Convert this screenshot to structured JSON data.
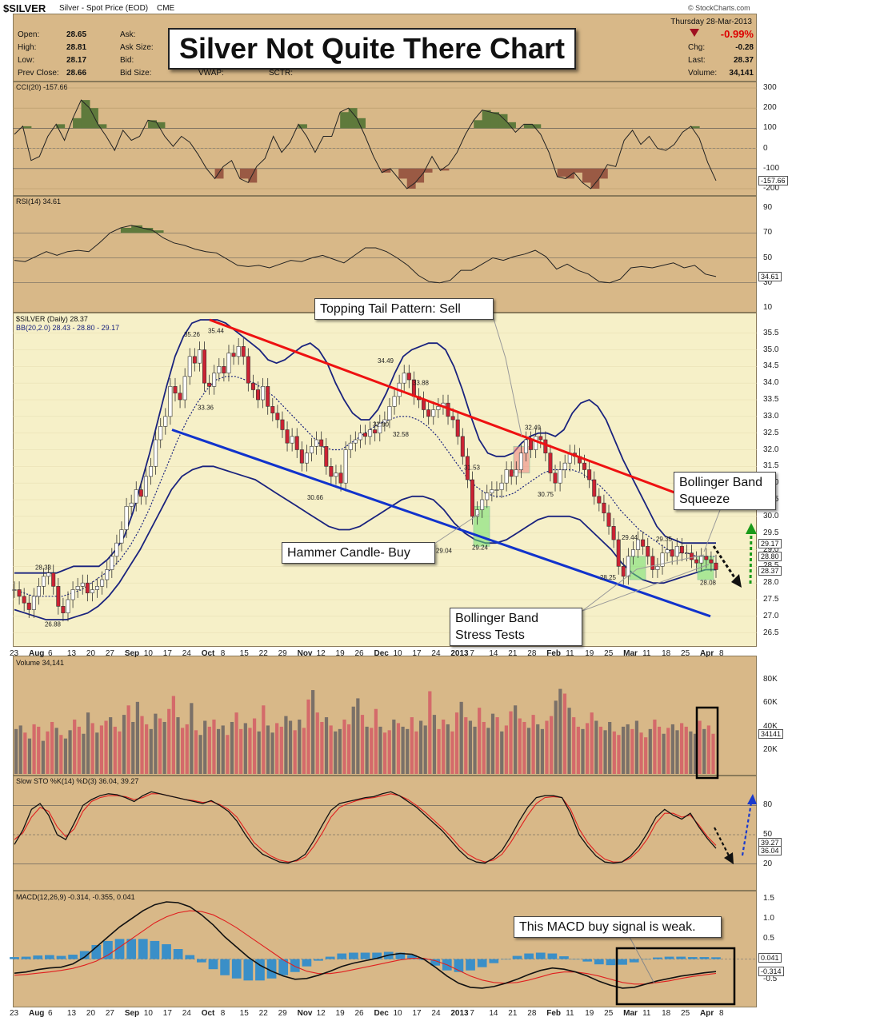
{
  "header": {
    "symbol": "$SILVER",
    "name": "Silver - Spot Price (EOD)",
    "exchange": "CME",
    "source": "© StockCharts.com",
    "date": "Thursday  28-Mar-2013",
    "change_pct": "-0.99%",
    "chart_title": "Silver Not Quite There Chart",
    "quotes_left": [
      {
        "label": "Open:",
        "value": "28.65"
      },
      {
        "label": "High:",
        "value": "28.81"
      },
      {
        "label": "Low:",
        "value": "28.17"
      },
      {
        "label": "Prev Close:",
        "value": "28.66"
      }
    ],
    "quotes_mid": [
      "Ask:",
      "Ask Size:",
      "Bid:",
      "Bid Size:"
    ],
    "quotes_extra": [
      "VWAP:",
      "SCTR:"
    ],
    "quotes_right": [
      {
        "label": "Chg:",
        "value": "-0.28"
      },
      {
        "label": "Last:",
        "value": "28.37"
      },
      {
        "label": "Volume:",
        "value": "34,141"
      }
    ]
  },
  "colors": {
    "panel": "#d8b888",
    "up": "#2e8b2e",
    "down": "#cc2233",
    "red_line": "#ee1111",
    "blue_line": "#1133cc",
    "band": "#1a237e",
    "cci_pos": "#5f7a3c",
    "cci_neg": "#9a5a44"
  },
  "x_axis": [
    "23",
    "Aug",
    "6",
    "13",
    "20",
    "27",
    "Sep",
    "10",
    "17",
    "24",
    "Oct",
    "8",
    "15",
    "22",
    "29",
    "Nov",
    "12",
    "19",
    "26",
    "Dec",
    "10",
    "17",
    "24",
    "2013",
    "7",
    "14",
    "21",
    "28",
    "Feb",
    "11",
    "19",
    "25",
    "Mar",
    "11",
    "18",
    "25",
    "Apr",
    "8"
  ],
  "annotations": {
    "topping": "Topping Tail Pattern: Sell",
    "hammer": "Hammer Candle- Buy",
    "squeeze": [
      "Bollinger Band",
      "Squeeze"
    ],
    "stress": [
      "Bollinger Band",
      "Stress Tests"
    ],
    "macd": "This MACD buy signal is weak."
  },
  "chart_data": [
    {
      "type": "line",
      "title": "CCI(20) -157.66",
      "ylim": [
        -200,
        300
      ],
      "ticks": [
        "300",
        "200",
        "100",
        "0",
        "-100",
        "-200"
      ],
      "last_tag": "-157.66",
      "levels": [
        100,
        -100
      ],
      "values": [
        70,
        110,
        -60,
        -40,
        60,
        120,
        40,
        150,
        240,
        200,
        120,
        60,
        -10,
        90,
        40,
        60,
        140,
        130,
        60,
        10,
        60,
        30,
        -30,
        -100,
        -150,
        -90,
        -60,
        -150,
        -170,
        -90,
        -50,
        60,
        -20,
        30,
        120,
        60,
        -20,
        60,
        60,
        180,
        200,
        150,
        60,
        -40,
        -120,
        -100,
        -150,
        -200,
        -170,
        -120,
        -40,
        -110,
        -80,
        -20,
        70,
        140,
        190,
        180,
        170,
        130,
        80,
        120,
        120,
        70,
        -20,
        -140,
        -150,
        -120,
        -170,
        -200,
        -150,
        -80,
        -90,
        40,
        90,
        20,
        60,
        0,
        -10,
        20,
        80,
        110,
        50,
        -70,
        -160
      ]
    },
    {
      "type": "line",
      "title": "RSI(14) 34.61",
      "ylim": [
        10,
        90
      ],
      "ticks": [
        "90",
        "70",
        "50",
        "30",
        "10"
      ],
      "last_tag": "34.61",
      "levels": [
        70,
        50,
        30
      ],
      "values": [
        48,
        47,
        51,
        55,
        52,
        55,
        56,
        55,
        62,
        70,
        74,
        76,
        74,
        72,
        66,
        62,
        60,
        57,
        55,
        54,
        49,
        44,
        43,
        44,
        42,
        45,
        48,
        47,
        50,
        52,
        49,
        46,
        52,
        58,
        58,
        55,
        50,
        44,
        36,
        31,
        30,
        32,
        40,
        40,
        45,
        50,
        48,
        51,
        53,
        56,
        51,
        41,
        45,
        40,
        37,
        31,
        30,
        33,
        42,
        43,
        42,
        44,
        46,
        42,
        44,
        37,
        35
      ]
    },
    {
      "type": "candlestick",
      "title": "$SILVER (Daily) 28.37",
      "subtitle": "BB(20,2.0) 28.43 - 28.80 - 29.17",
      "ylim": [
        26.3,
        35.9
      ],
      "ticks": [
        "35.5",
        "35.0",
        "34.5",
        "34.0",
        "33.5",
        "33.0",
        "32.5",
        "32.0",
        "31.5",
        "31.0",
        "30.5",
        "30.0",
        "29.5",
        "29.0",
        "28.5",
        "28.0",
        "27.5",
        "27.0",
        "26.5"
      ],
      "tags": [
        "29.17",
        "28.80",
        "28.37"
      ],
      "close": [
        27.8,
        27.6,
        27.4,
        27.2,
        27.6,
        27.9,
        28.2,
        28.3,
        27.9,
        27.3,
        27.1,
        27.5,
        27.8,
        27.9,
        28.0,
        27.7,
        27.8,
        27.9,
        28.1,
        28.4,
        28.8,
        29.2,
        29.6,
        30.3,
        30.4,
        30.8,
        30.6,
        31.2,
        31.5,
        32.3,
        32.7,
        33.0,
        33.9,
        33.7,
        33.5,
        34.2,
        34.8,
        34.6,
        35.0,
        34.0,
        33.9,
        34.3,
        34.5,
        34.3,
        34.9,
        34.8,
        35.1,
        34.8,
        34.0,
        33.8,
        33.5,
        33.9,
        33.3,
        33.1,
        32.9,
        32.6,
        32.2,
        32.4,
        32.0,
        31.6,
        31.9,
        32.1,
        32.3,
        32.1,
        31.5,
        31.2,
        31.3,
        31.0,
        32.0,
        32.2,
        32.3,
        32.5,
        32.4,
        32.6,
        32.5,
        32.8,
        32.9,
        33.3,
        33.6,
        34.0,
        34.3,
        34.1,
        33.6,
        33.5,
        33.2,
        33.0,
        33.2,
        33.3,
        33.4,
        33.0,
        32.9,
        32.4,
        31.8,
        31.1,
        30.0,
        30.2,
        30.5,
        30.7,
        30.8,
        30.8,
        31.0,
        31.4,
        31.2,
        31.4,
        31.9,
        32.3,
        32.0,
        32.4,
        32.3,
        31.9,
        31.3,
        31.0,
        31.4,
        31.6,
        31.9,
        31.8,
        31.6,
        31.4,
        31.1,
        30.6,
        30.4,
        30.1,
        29.7,
        29.3,
        28.5,
        28.2,
        28.8,
        29.0,
        29.3,
        29.1,
        28.8,
        28.4,
        28.5,
        28.9,
        29.0,
        28.8,
        29.1,
        28.9,
        28.9,
        28.7,
        28.6,
        28.8,
        28.7,
        28.6,
        28.4
      ],
      "bb_upper": [
        28.3,
        28.3,
        28.3,
        28.3,
        28.3,
        28.3,
        28.4,
        28.5,
        28.5,
        28.5,
        28.5,
        28.7,
        29.0,
        29.4,
        30.1,
        31.0,
        31.9,
        32.9,
        33.9,
        34.8,
        35.4,
        35.8,
        35.9,
        35.9,
        35.9,
        35.8,
        35.6,
        35.4,
        35.2,
        35.0,
        34.7,
        34.6,
        34.7,
        34.9,
        35.1,
        35.2,
        35.0,
        34.6,
        34.0,
        33.5,
        33.1,
        32.9,
        32.9,
        33.2,
        33.7,
        34.3,
        34.8,
        35.0,
        35.1,
        35.2,
        35.2,
        35.0,
        34.5,
        33.8,
        33.0,
        32.3,
        31.9,
        31.8,
        31.8,
        31.9,
        32.2,
        32.4,
        32.5,
        32.5,
        32.4,
        32.6,
        33.1,
        33.4,
        33.5,
        33.3,
        32.9,
        32.3,
        31.7,
        31.2,
        30.7,
        30.2,
        29.7,
        29.4,
        29.3,
        29.2,
        29.2,
        29.2,
        29.2,
        29.2
      ],
      "bb_mid": [
        27.8,
        27.7,
        27.6,
        27.6,
        27.6,
        27.6,
        27.7,
        27.8,
        28.0,
        28.2,
        28.4,
        28.7,
        29.1,
        29.6,
        30.2,
        30.9,
        31.6,
        32.3,
        32.9,
        33.4,
        33.8,
        34.1,
        34.2,
        34.2,
        34.1,
        34.0,
        33.8,
        33.6,
        33.3,
        33.0,
        32.7,
        32.4,
        32.1,
        32.0,
        32.0,
        32.2,
        32.4,
        32.6,
        32.8,
        32.9,
        33.0,
        33.0,
        32.9,
        32.7,
        32.4,
        32.0,
        31.6,
        31.2,
        30.9,
        30.7,
        30.6,
        30.6,
        30.7,
        30.9,
        31.1,
        31.3,
        31.4,
        31.4,
        31.4,
        31.3,
        31.1,
        30.9,
        30.6,
        30.2,
        29.9,
        29.6,
        29.4,
        29.2,
        29.0,
        28.9,
        28.9,
        28.8,
        28.8,
        28.8
      ],
      "bb_lower": [
        27.2,
        27.1,
        27.0,
        26.9,
        26.9,
        26.9,
        27.0,
        27.1,
        27.3,
        27.6,
        28.0,
        28.5,
        29.0,
        29.6,
        30.2,
        30.8,
        31.2,
        31.4,
        31.5,
        31.5,
        31.4,
        31.3,
        31.2,
        31.1,
        30.9,
        30.7,
        30.5,
        30.3,
        30.1,
        29.9,
        29.7,
        29.6,
        29.6,
        29.7,
        29.9,
        30.1,
        30.3,
        30.5,
        30.6,
        30.6,
        30.5,
        30.2,
        29.8,
        29.5,
        29.3,
        29.2,
        29.2,
        29.3,
        29.5,
        29.7,
        29.9,
        30.0,
        30.0,
        30.0,
        29.9,
        29.6,
        29.3,
        29.0,
        28.6,
        28.3,
        28.1,
        28.0,
        28.0,
        28.1,
        28.2,
        28.3,
        28.4,
        28.4
      ],
      "labels": [
        "28.33",
        "26.88",
        "35.26",
        "35.44",
        "33.36",
        "34.49",
        "33.88",
        "32.90",
        "32.58",
        "30.66",
        "31.53",
        "29.24",
        "29.04",
        "32.49",
        "30.75",
        "29.44",
        "29.35",
        "28.25",
        "28.08"
      ]
    },
    {
      "type": "bar",
      "title": "Volume 34,141",
      "ylim": [
        0,
        90000
      ],
      "ticks": [
        "80K",
        "60K",
        "40K",
        "20K"
      ],
      "last_tag": "34141",
      "values": [
        38,
        41,
        35,
        30,
        42,
        40,
        28,
        36,
        44,
        39,
        33,
        30,
        37,
        46,
        40,
        34,
        52,
        43,
        35,
        41,
        45,
        48,
        40,
        36,
        50,
        58,
        44,
        61,
        49,
        42,
        38,
        51,
        47,
        44,
        55,
        66,
        48,
        39,
        42,
        60,
        37,
        33,
        45,
        40,
        46,
        38,
        41,
        33,
        44,
        52,
        38,
        43,
        39,
        47,
        36,
        58,
        41,
        35,
        43,
        40,
        49,
        45,
        37,
        46,
        39,
        63,
        71,
        52,
        44,
        48,
        41,
        36,
        38,
        46,
        42,
        57,
        64,
        50,
        40,
        39,
        55,
        40,
        35,
        37,
        46,
        43,
        40,
        38,
        48,
        36,
        45,
        41,
        70,
        50,
        38,
        46,
        42,
        36,
        52,
        61,
        48,
        45,
        40,
        56,
        44,
        39,
        51,
        48,
        36,
        41,
        53,
        58,
        47,
        44,
        39,
        50,
        42,
        38,
        45,
        49,
        62,
        72,
        68,
        56,
        48,
        40,
        38,
        43,
        52,
        45,
        40,
        37,
        44,
        36,
        33,
        40,
        42,
        38,
        45,
        35,
        31,
        38,
        46,
        40,
        34,
        39,
        42,
        37,
        43,
        40,
        36,
        34,
        45,
        38,
        41,
        34
      ]
    },
    {
      "type": "line",
      "title": "Slow STO %K(14) %D(3) 36.04, 39.27",
      "ylim": [
        0,
        100
      ],
      "ticks": [
        "80",
        "50",
        "20"
      ],
      "tags": [
        "39.27",
        "36.04"
      ],
      "series": [
        {
          "name": "%K",
          "values": [
            40,
            55,
            76,
            82,
            70,
            50,
            45,
            62,
            80,
            86,
            90,
            92,
            91,
            88,
            84,
            90,
            94,
            92,
            90,
            88,
            86,
            84,
            82,
            85,
            80,
            74,
            64,
            50,
            38,
            30,
            26,
            22,
            21,
            24,
            30,
            44,
            60,
            75,
            82,
            84,
            86,
            88,
            89,
            92,
            94,
            90,
            84,
            78,
            70,
            62,
            54,
            44,
            34,
            26,
            22,
            21,
            26,
            34,
            48,
            64,
            78,
            88,
            90,
            90,
            88,
            72,
            50,
            38,
            28,
            22,
            21,
            22,
            28,
            38,
            52,
            68,
            76,
            70,
            66,
            72,
            58,
            46,
            36
          ]
        },
        {
          "name": "%D",
          "values": [
            45,
            52,
            68,
            78,
            74,
            58,
            48,
            56,
            74,
            84,
            88,
            90,
            90,
            89,
            86,
            88,
            92,
            92,
            90,
            88,
            86,
            85,
            83,
            84,
            81,
            76,
            68,
            55,
            42,
            34,
            28,
            24,
            22,
            23,
            27,
            38,
            52,
            68,
            78,
            82,
            85,
            87,
            88,
            90,
            92,
            90,
            86,
            80,
            73,
            65,
            57,
            48,
            38,
            30,
            25,
            22,
            24,
            30,
            42,
            56,
            70,
            82,
            88,
            89,
            88,
            76,
            56,
            42,
            32,
            25,
            22,
            22,
            26,
            34,
            46,
            62,
            72,
            72,
            68,
            70,
            60,
            48,
            39
          ]
        }
      ]
    },
    {
      "type": "line",
      "title": "MACD(12,26,9) -0.314, -0.355, 0.041",
      "ylim": [
        -1.0,
        1.5
      ],
      "ticks": [
        "1.5",
        "1.0",
        "0.5",
        "0.0",
        "-0.5"
      ],
      "tags": [
        "0.041",
        "-0.314"
      ],
      "series": [
        {
          "name": "MACD",
          "values": [
            -0.35,
            -0.32,
            -0.26,
            -0.22,
            -0.2,
            -0.12,
            0.05,
            0.3,
            0.55,
            0.8,
            1.0,
            1.2,
            1.35,
            1.42,
            1.4,
            1.3,
            1.1,
            0.85,
            0.55,
            0.3,
            0.05,
            -0.15,
            -0.3,
            -0.42,
            -0.5,
            -0.48,
            -0.4,
            -0.3,
            -0.18,
            -0.1,
            -0.04,
            0.02,
            0.1,
            0.14,
            0.12,
            0.0,
            -0.2,
            -0.42,
            -0.6,
            -0.7,
            -0.72,
            -0.68,
            -0.6,
            -0.5,
            -0.38,
            -0.28,
            -0.22,
            -0.25,
            -0.32,
            -0.42,
            -0.55,
            -0.65,
            -0.72,
            -0.7,
            -0.62,
            -0.54,
            -0.48,
            -0.42,
            -0.38,
            -0.34,
            -0.31
          ]
        },
        {
          "name": "Signal",
          "values": [
            -0.4,
            -0.38,
            -0.35,
            -0.32,
            -0.28,
            -0.23,
            -0.15,
            -0.05,
            0.1,
            0.3,
            0.5,
            0.7,
            0.9,
            1.05,
            1.15,
            1.2,
            1.18,
            1.1,
            0.95,
            0.78,
            0.58,
            0.38,
            0.18,
            -0.02,
            -0.18,
            -0.3,
            -0.36,
            -0.36,
            -0.32,
            -0.26,
            -0.2,
            -0.14,
            -0.08,
            -0.02,
            0.02,
            0.02,
            -0.04,
            -0.14,
            -0.28,
            -0.42,
            -0.52,
            -0.58,
            -0.6,
            -0.58,
            -0.52,
            -0.44,
            -0.36,
            -0.32,
            -0.32,
            -0.36,
            -0.42,
            -0.5,
            -0.58,
            -0.62,
            -0.62,
            -0.58,
            -0.54,
            -0.48,
            -0.43,
            -0.39,
            -0.355
          ]
        }
      ]
    }
  ]
}
